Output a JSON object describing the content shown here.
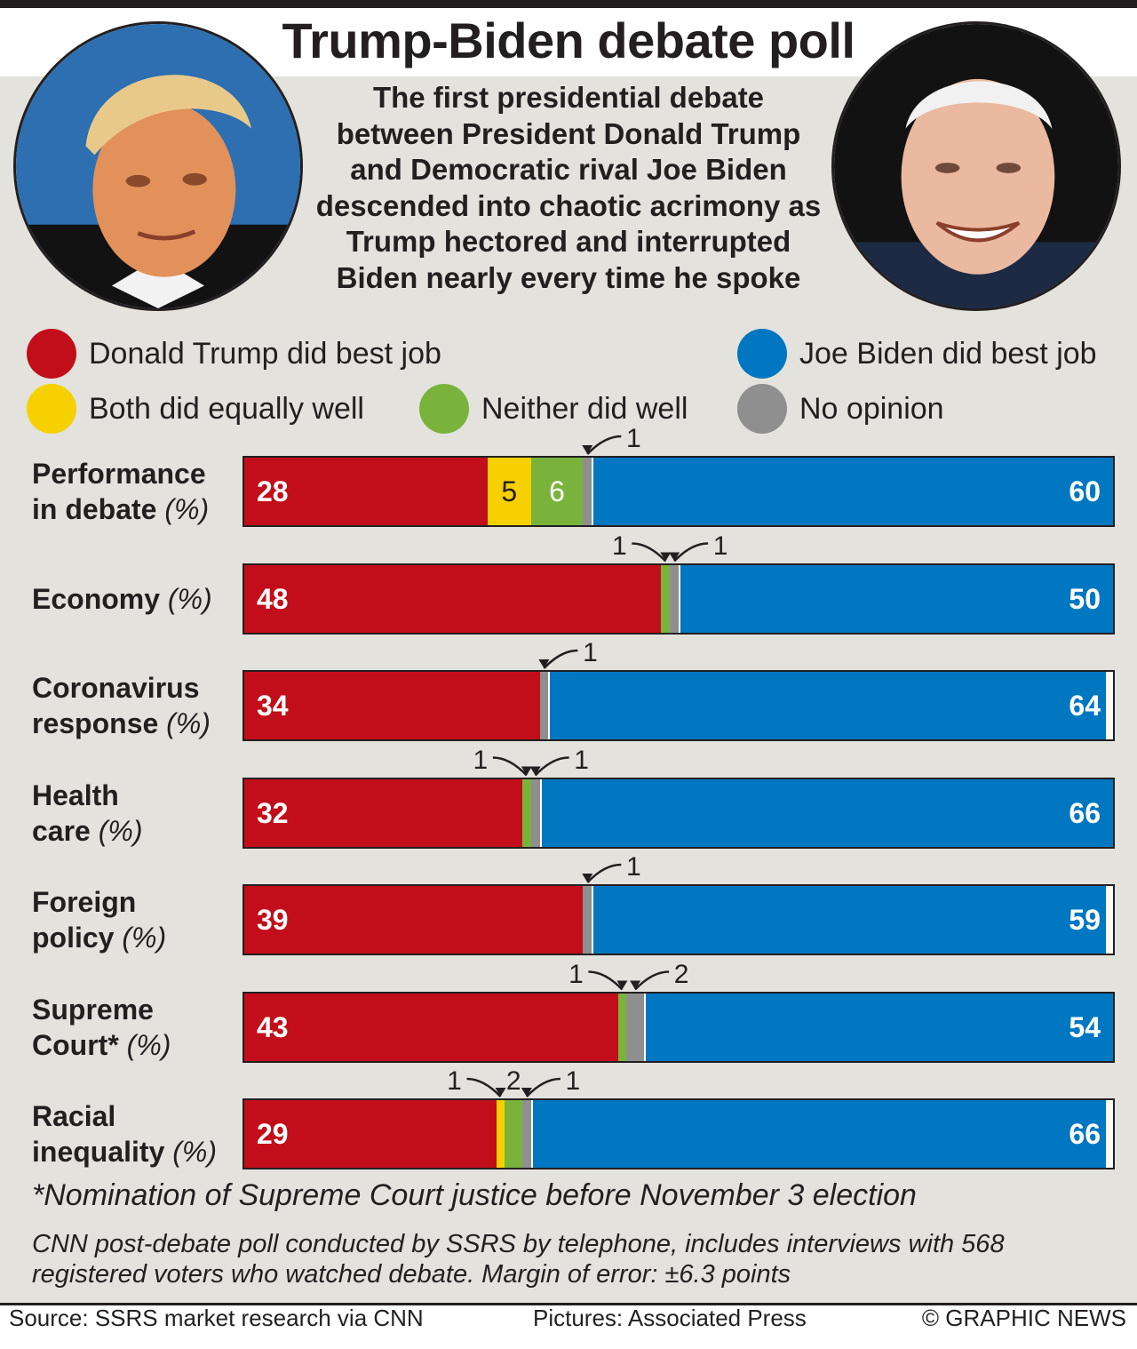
{
  "title": "Trump-Biden debate poll",
  "intro": "The first presidential debate between President Donald Trump and Democratic rival Joe Biden descended into chaotic acrimony as Trump hectored and interrupted Biden nearly every time he spoke",
  "colors": {
    "trump": "#c20e1a",
    "both": "#f7d000",
    "neither": "#79b33c",
    "noopinion": "#8f8f8f",
    "biden": "#0077c0"
  },
  "legend": [
    {
      "key": "trump",
      "label": "Donald Trump did best job"
    },
    {
      "key": "biden",
      "label": "Joe Biden did best job"
    },
    {
      "key": "both",
      "label": "Both did equally well"
    },
    {
      "key": "neither",
      "label": "Neither did well"
    },
    {
      "key": "noopinion",
      "label": "No opinion"
    }
  ],
  "portraits": [
    {
      "name": "donald-trump-photo",
      "icon": "portrait-photo"
    },
    {
      "name": "joe-biden-photo",
      "icon": "portrait-photo"
    }
  ],
  "chart_data": {
    "type": "bar",
    "orientation": "horizontal",
    "stacked": true,
    "unit": "%",
    "categories": [
      {
        "line1": "Performance",
        "line2": "in debate",
        "unit": "(%)"
      },
      {
        "line1": "Economy",
        "line2": "",
        "unit": "(%)"
      },
      {
        "line1": "Coronavirus",
        "line2": "response",
        "unit": "(%)"
      },
      {
        "line1": "Health",
        "line2": "care",
        "unit": "(%)"
      },
      {
        "line1": "Foreign",
        "line2": "policy",
        "unit": "(%)"
      },
      {
        "line1": "Supreme",
        "line2": "Court*",
        "unit": "(%)"
      },
      {
        "line1": "Racial",
        "line2": "inequality",
        "unit": "(%)"
      }
    ],
    "series": [
      {
        "name": "Donald Trump did best job",
        "key": "trump",
        "values": [
          28,
          48,
          34,
          32,
          39,
          43,
          29
        ]
      },
      {
        "name": "Both did equally well",
        "key": "both",
        "values": [
          5,
          0,
          0,
          0,
          0,
          0,
          1
        ]
      },
      {
        "name": "Neither did well",
        "key": "neither",
        "values": [
          6,
          1,
          0,
          1,
          0,
          1,
          2
        ]
      },
      {
        "name": "No opinion",
        "key": "noopinion",
        "values": [
          1,
          1,
          1,
          1,
          1,
          2,
          1
        ]
      },
      {
        "name": "Joe Biden did best job",
        "key": "biden",
        "values": [
          60,
          50,
          64,
          66,
          59,
          54,
          66
        ]
      }
    ],
    "callouts": [
      [
        {
          "series": "noopinion",
          "text": "1",
          "side": "right"
        }
      ],
      [
        {
          "series": "neither",
          "text": "1",
          "side": "left"
        },
        {
          "series": "noopinion",
          "text": "1",
          "side": "right"
        }
      ],
      [
        {
          "series": "noopinion",
          "text": "1",
          "side": "right"
        }
      ],
      [
        {
          "series": "neither",
          "text": "1",
          "side": "left"
        },
        {
          "series": "noopinion",
          "text": "1",
          "side": "right"
        }
      ],
      [
        {
          "series": "noopinion",
          "text": "1",
          "side": "right"
        }
      ],
      [
        {
          "series": "neither",
          "text": "1",
          "side": "left"
        },
        {
          "series": "noopinion",
          "text": "2",
          "side": "right"
        }
      ],
      [
        {
          "series": "both",
          "text": "1",
          "side": "left"
        },
        {
          "series": "neither",
          "text": "2",
          "side": "mid"
        },
        {
          "series": "noopinion",
          "text": "1",
          "side": "right"
        }
      ]
    ],
    "xlim": [
      0,
      100
    ]
  },
  "footnote": "*Nomination of Supreme Court justice before November 3 election",
  "methodology": "CNN post-debate poll conducted by SSRS by telephone, includes interviews with 568 registered voters who watched debate. Margin of error: ±6.3 points",
  "footer": {
    "source": "Source: SSRS market research via CNN",
    "pictures": "Pictures: Associated Press",
    "credit": "© GRAPHIC NEWS"
  }
}
